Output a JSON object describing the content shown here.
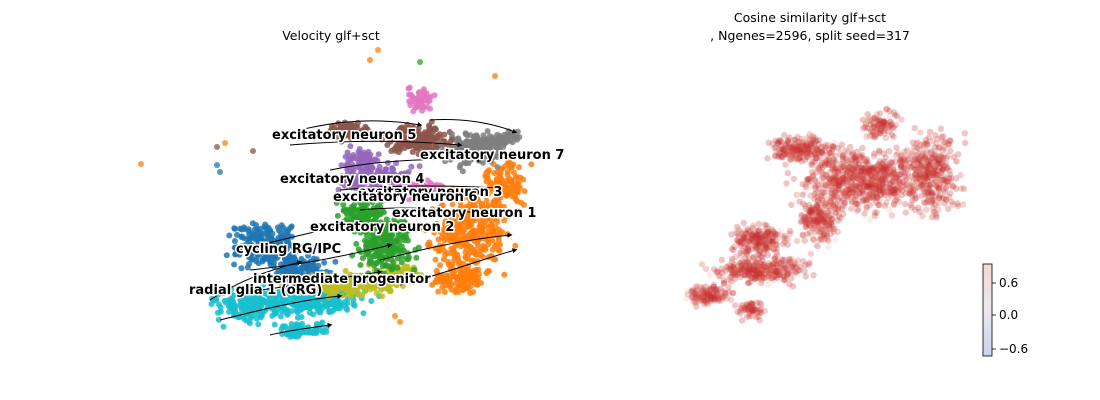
{
  "chart_data": [
    {
      "type": "scatter",
      "title": "Velocity glf+sct",
      "clusters": [
        {
          "name": "excitatory neuron 5",
          "color": "#8c564b"
        },
        {
          "name": "excitatory neuron 7",
          "color": "#7f7f7f"
        },
        {
          "name": "excitatory neuron 4",
          "color": "#9467bd"
        },
        {
          "name": "excitatory neuron 3",
          "color": "#e377c2"
        },
        {
          "name": "excitatory neuron 6",
          "color": "#9467bd"
        },
        {
          "name": "excitatory neuron 1",
          "color": "#ff7f0e"
        },
        {
          "name": "excitatory neuron 2",
          "color": "#2ca02c"
        },
        {
          "name": "cycling RG/IPC",
          "color": "#1f77b4"
        },
        {
          "name": "intermediate progenitor",
          "color": "#bcbd22"
        },
        {
          "name": "radial glia 1 (oRG)",
          "color": "#17becf"
        }
      ]
    },
    {
      "type": "scatter",
      "title_line1": "Cosine similarity glf+sct",
      "title_line2": ", Ngenes=2596, split seed=317",
      "colorbar": {
        "ticks": [
          "0.6",
          "0.0",
          "−0.6"
        ],
        "range": [
          -0.8,
          0.9
        ]
      }
    }
  ]
}
